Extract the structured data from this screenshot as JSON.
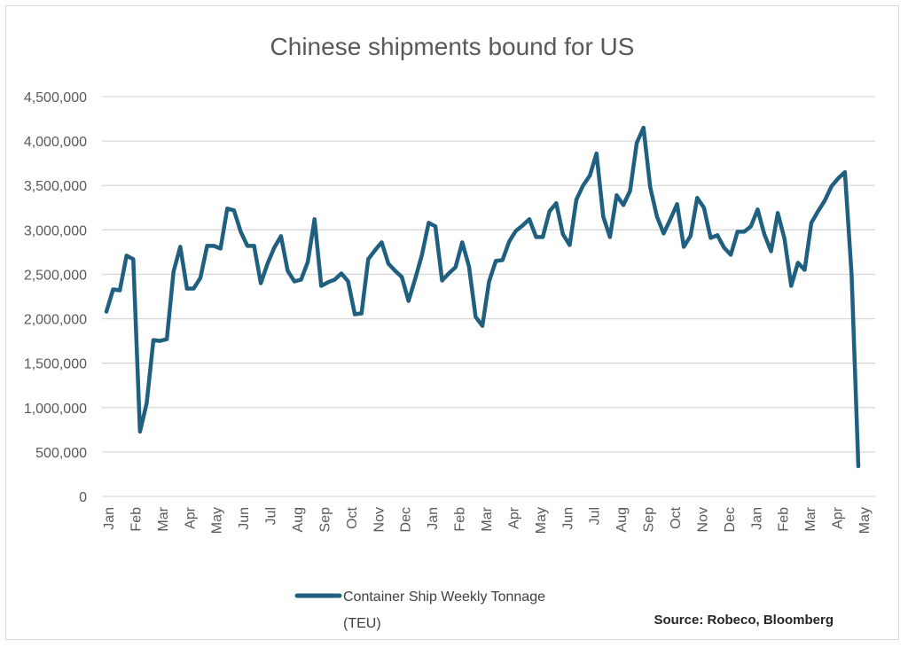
{
  "chart_data": {
    "type": "line",
    "title": "Chinese shipments bound for US",
    "xlabel": "",
    "ylabel": "",
    "ylim": [
      0,
      4500000
    ],
    "ytick_values": [
      0,
      500000,
      1000000,
      1500000,
      2000000,
      2500000,
      3000000,
      3500000,
      4000000,
      4500000
    ],
    "ytick_labels": [
      "0",
      "500,000",
      "1,000,000",
      "1,500,000",
      "2,000,000",
      "2,500,000",
      "3,000,000",
      "3,500,000",
      "4,000,000",
      "4,500,000"
    ],
    "x_tick_labels": [
      "Jan",
      "Feb",
      "Mar",
      "Apr",
      "May",
      "Jun",
      "Jul",
      "Aug",
      "Sep",
      "Oct",
      "Nov",
      "Dec",
      "Jan",
      "Feb",
      "Mar",
      "Apr",
      "May",
      "Jun",
      "Jul",
      "Aug",
      "Sep",
      "Oct",
      "Nov",
      "Dec",
      "Jan",
      "Feb",
      "Mar",
      "Apr",
      "May"
    ],
    "grid": true,
    "series": [
      {
        "name": "Container Ship Weekly Tonnage (TEU)",
        "color": "#1f5f7f",
        "values": [
          2080000,
          2330000,
          2320000,
          2710000,
          2670000,
          730000,
          1050000,
          1760000,
          1750000,
          1770000,
          2530000,
          2810000,
          2340000,
          2340000,
          2460000,
          2820000,
          2820000,
          2790000,
          3240000,
          3220000,
          2980000,
          2820000,
          2820000,
          2400000,
          2620000,
          2800000,
          2930000,
          2540000,
          2420000,
          2440000,
          2640000,
          3120000,
          2370000,
          2410000,
          2440000,
          2510000,
          2420000,
          2050000,
          2060000,
          2670000,
          2770000,
          2860000,
          2620000,
          2540000,
          2470000,
          2200000,
          2450000,
          2720000,
          3080000,
          3040000,
          2430000,
          2510000,
          2580000,
          2860000,
          2590000,
          2020000,
          1920000,
          2420000,
          2650000,
          2660000,
          2870000,
          2990000,
          3050000,
          3120000,
          2920000,
          2920000,
          3210000,
          3300000,
          2950000,
          2830000,
          3340000,
          3500000,
          3610000,
          3860000,
          3150000,
          2920000,
          3390000,
          3280000,
          3440000,
          3980000,
          4150000,
          3480000,
          3150000,
          2960000,
          3120000,
          3290000,
          2810000,
          2930000,
          3360000,
          3250000,
          2910000,
          2940000,
          2800000,
          2720000,
          2980000,
          2980000,
          3040000,
          3230000,
          2950000,
          2760000,
          3190000,
          2900000,
          2370000,
          2630000,
          2550000,
          3080000,
          3210000,
          3330000,
          3490000,
          3580000,
          3650000,
          2490000,
          340000
        ]
      }
    ]
  },
  "legend": {
    "line1": "Container Ship Weekly Tonnage",
    "line2": "(TEU)"
  },
  "source": "Source: Robeco, Bloomberg"
}
